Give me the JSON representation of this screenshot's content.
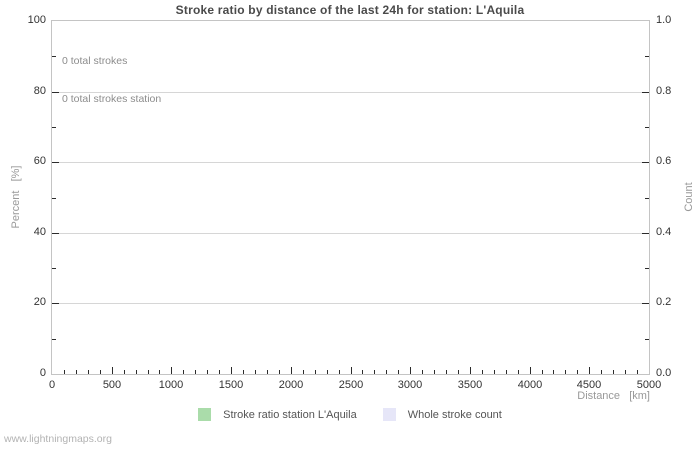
{
  "chart_data": {
    "type": "line",
    "title": "Stroke ratio by distance of the last 24h for station: L'Aquila",
    "xlabel": "Distance   [km]",
    "ylabel_left": "Percent   [%]",
    "ylabel_right": "Count",
    "xlim": [
      0,
      5000
    ],
    "ylim_left": [
      0,
      100
    ],
    "ylim_right": [
      0.0,
      1.0
    ],
    "x_ticks": [
      0,
      500,
      1000,
      1500,
      2000,
      2500,
      3000,
      3500,
      4000,
      4500,
      5000
    ],
    "x_minor_step": 100,
    "y_left_ticks": [
      0,
      20,
      40,
      60,
      80,
      100
    ],
    "y_left_minor_step": 10,
    "y_right_ticks": [
      "0.0",
      "0.2",
      "0.4",
      "0.6",
      "0.8",
      "1.0"
    ],
    "grid": "horizontal",
    "legend_position": "bottom-center",
    "annotations": [
      "0 total strokes",
      "0 total strokes station"
    ],
    "series": [
      {
        "name": "Stroke ratio station L'Aquila",
        "color": "#aadcaa",
        "x": [],
        "values": []
      },
      {
        "name": "Whole stroke count",
        "color": "#e6e6f8",
        "x": [],
        "values": []
      }
    ],
    "footer": "www.lightningmaps.org"
  }
}
